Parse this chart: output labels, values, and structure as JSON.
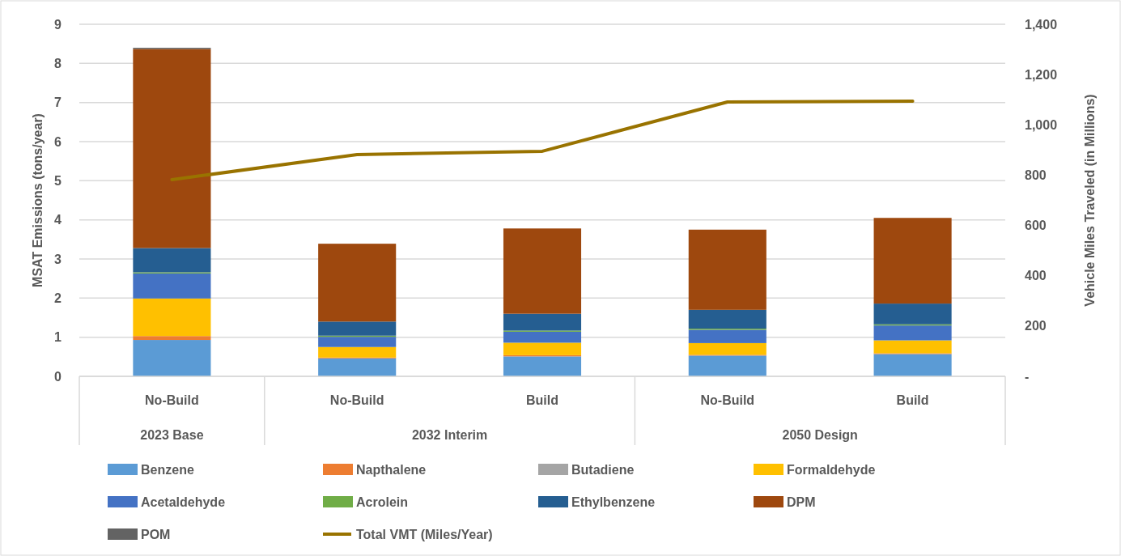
{
  "chart_data": {
    "type": "bar",
    "stacked": true,
    "categories": [
      "No-Build",
      "No-Build",
      "Build",
      "No-Build",
      "Build"
    ],
    "annotations": [
      "2023 Base",
      "2032 Interim",
      "2050 Design"
    ],
    "ylabel": "MSAT Emissions (tons/year)",
    "y2label": "Vehicle Miles Traveled (in Millions)",
    "ylim": [
      0,
      9
    ],
    "yticks": [
      0,
      1,
      2,
      3,
      4,
      5,
      6,
      7,
      8,
      9
    ],
    "y2lim": [
      0,
      1400
    ],
    "y2ticks": [
      {
        "value": 0,
        "label": "-"
      },
      {
        "value": 200,
        "label": "200"
      },
      {
        "value": 400,
        "label": "400"
      },
      {
        "value": 600,
        "label": "600"
      },
      {
        "value": 800,
        "label": "800"
      },
      {
        "value": 1000,
        "label": "1,000"
      },
      {
        "value": 1200,
        "label": "1,200"
      },
      {
        "value": 1400,
        "label": "1,400"
      }
    ],
    "grid": "y",
    "legend": "bottom",
    "series": [
      {
        "name": "Benzene",
        "color": "#5b9bd5",
        "values": [
          0.93,
          0.46,
          0.51,
          0.53,
          0.57
        ]
      },
      {
        "name": "Napthalene",
        "color": "#ed7d31",
        "values": [
          0.1,
          0.02,
          0.03,
          0.02,
          0.02
        ]
      },
      {
        "name": "Butadiene",
        "color": "#a5a5a5",
        "values": [
          null,
          null,
          null,
          null,
          null
        ]
      },
      {
        "name": "Formaldehyde",
        "color": "#ffc000",
        "values": [
          0.96,
          0.27,
          0.32,
          0.3,
          0.33
        ]
      },
      {
        "name": "Acetaldehyde",
        "color": "#4472c4",
        "values": [
          0.64,
          0.26,
          0.28,
          0.34,
          0.38
        ]
      },
      {
        "name": "Acrolein",
        "color": "#70ad47",
        "values": [
          0.03,
          0.03,
          0.03,
          0.03,
          0.03
        ]
      },
      {
        "name": "Ethylbenzene",
        "color": "#255e91",
        "values": [
          0.62,
          0.36,
          0.43,
          0.48,
          0.53
        ]
      },
      {
        "name": "DPM",
        "color": "#9e480e",
        "values": [
          5.09,
          1.99,
          2.18,
          2.05,
          2.19
        ]
      },
      {
        "name": "POM",
        "color": "#636363",
        "values": [
          0.03,
          null,
          null,
          null,
          null
        ]
      },
      {
        "name": "Total VMT (Miles/Year)",
        "type": "line",
        "axis": "y2",
        "color": "#997300",
        "values": [
          782,
          882,
          895,
          1091,
          1094
        ]
      }
    ]
  }
}
